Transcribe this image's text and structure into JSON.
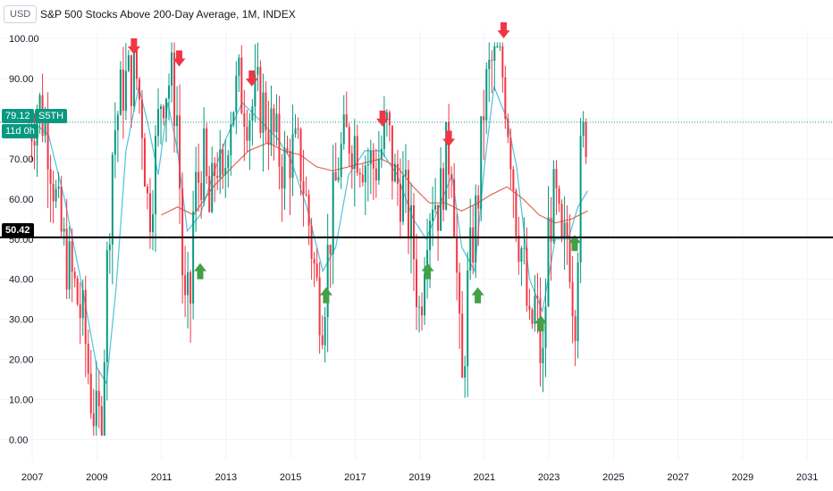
{
  "header": {
    "currency": "USD",
    "title": "S&P 500 Stocks Above 200-Day Average, 1M, INDEX"
  },
  "badges": {
    "last_price": "79.12",
    "symbol": "S5TH",
    "countdown": "11d 0h",
    "level": "50.42"
  },
  "colors": {
    "up": "#089981",
    "down": "#f23645",
    "ma_fast": "#4fc3d9",
    "ma_slow": "#e06a55",
    "hline": "#000000",
    "grid": "#f0f3fa",
    "price_line": "#089981"
  },
  "chart_data": {
    "type": "candlestick",
    "title": "S&P 500 Stocks Above 200-Day Average, 1M, INDEX",
    "xlabel": "",
    "ylabel": "",
    "x_ticks": [
      "2007",
      "2009",
      "2011",
      "2013",
      "2015",
      "2017",
      "2019",
      "2021",
      "2023",
      "2025",
      "2027",
      "2029",
      "2031"
    ],
    "y_ticks": [
      "0.00",
      "10.00",
      "20.00",
      "30.00",
      "40.00",
      "50.00",
      "60.00",
      "70.00",
      "80.00",
      "90.00",
      "100.00"
    ],
    "xlim": [
      2006.0,
      2031.8
    ],
    "ylim": [
      -5,
      102
    ],
    "horizontal_line": 50.42,
    "last_value": 79.12,
    "anchors": [
      [
        2006.9,
        77
      ],
      [
        2007.2,
        84
      ],
      [
        2007.5,
        75
      ],
      [
        2007.8,
        55
      ],
      [
        2008.0,
        47
      ],
      [
        2008.3,
        38
      ],
      [
        2008.6,
        28
      ],
      [
        2008.8,
        12
      ],
      [
        2009.0,
        3
      ],
      [
        2009.15,
        5
      ],
      [
        2009.3,
        40
      ],
      [
        2009.5,
        75
      ],
      [
        2009.8,
        88
      ],
      [
        2010.0,
        90
      ],
      [
        2010.2,
        92
      ],
      [
        2010.4,
        80
      ],
      [
        2010.6,
        55
      ],
      [
        2010.8,
        70
      ],
      [
        2011.0,
        87
      ],
      [
        2011.3,
        90
      ],
      [
        2011.5,
        80
      ],
      [
        2011.7,
        30
      ],
      [
        2011.9,
        35
      ],
      [
        2012.0,
        60
      ],
      [
        2012.3,
        70
      ],
      [
        2012.5,
        55
      ],
      [
        2012.7,
        72
      ],
      [
        2012.9,
        60
      ],
      [
        2013.1,
        82
      ],
      [
        2013.4,
        88
      ],
      [
        2013.7,
        82
      ],
      [
        2014.0,
        85
      ],
      [
        2014.3,
        80
      ],
      [
        2014.6,
        72
      ],
      [
        2014.8,
        68
      ],
      [
        2015.0,
        72
      ],
      [
        2015.3,
        70
      ],
      [
        2015.6,
        52
      ],
      [
        2015.8,
        38
      ],
      [
        2016.0,
        32
      ],
      [
        2016.2,
        50
      ],
      [
        2016.5,
        70
      ],
      [
        2016.8,
        76
      ],
      [
        2017.0,
        75
      ],
      [
        2017.3,
        70
      ],
      [
        2017.6,
        68
      ],
      [
        2017.8,
        72
      ],
      [
        2018.0,
        78
      ],
      [
        2018.2,
        65
      ],
      [
        2018.5,
        62
      ],
      [
        2018.8,
        48
      ],
      [
        2019.0,
        30
      ],
      [
        2019.2,
        55
      ],
      [
        2019.4,
        62
      ],
      [
        2019.6,
        58
      ],
      [
        2019.8,
        70
      ],
      [
        2020.0,
        72
      ],
      [
        2020.2,
        30
      ],
      [
        2020.3,
        10
      ],
      [
        2020.5,
        40
      ],
      [
        2020.8,
        60
      ],
      [
        2021.0,
        85
      ],
      [
        2021.2,
        93
      ],
      [
        2021.4,
        95
      ],
      [
        2021.6,
        90
      ],
      [
        2021.8,
        75
      ],
      [
        2022.0,
        55
      ],
      [
        2022.2,
        45
      ],
      [
        2022.4,
        25
      ],
      [
        2022.6,
        35
      ],
      [
        2022.8,
        15
      ],
      [
        2023.0,
        55
      ],
      [
        2023.2,
        60
      ],
      [
        2023.4,
        45
      ],
      [
        2023.6,
        52
      ],
      [
        2023.8,
        30
      ],
      [
        2024.0,
        72
      ],
      [
        2024.2,
        79
      ]
    ],
    "ma_fast": [
      [
        2006.9,
        80
      ],
      [
        2007.5,
        76
      ],
      [
        2008.0,
        60
      ],
      [
        2008.5,
        40
      ],
      [
        2009.0,
        18
      ],
      [
        2009.3,
        14
      ],
      [
        2009.6,
        38
      ],
      [
        2009.9,
        72
      ],
      [
        2010.3,
        88
      ],
      [
        2010.6,
        78
      ],
      [
        2010.9,
        66
      ],
      [
        2011.2,
        84
      ],
      [
        2011.5,
        72
      ],
      [
        2011.8,
        52
      ],
      [
        2012.2,
        56
      ],
      [
        2012.6,
        66
      ],
      [
        2013.0,
        75
      ],
      [
        2013.5,
        84
      ],
      [
        2014.0,
        80
      ],
      [
        2014.6,
        75
      ],
      [
        2015.0,
        70
      ],
      [
        2015.5,
        58
      ],
      [
        2016.0,
        42
      ],
      [
        2016.4,
        48
      ],
      [
        2016.8,
        66
      ],
      [
        2017.3,
        72
      ],
      [
        2017.8,
        72
      ],
      [
        2018.3,
        66
      ],
      [
        2018.8,
        55
      ],
      [
        2019.2,
        50
      ],
      [
        2019.6,
        58
      ],
      [
        2020.0,
        66
      ],
      [
        2020.3,
        48
      ],
      [
        2020.7,
        42
      ],
      [
        2021.0,
        68
      ],
      [
        2021.3,
        88
      ],
      [
        2021.7,
        80
      ],
      [
        2022.0,
        68
      ],
      [
        2022.4,
        40
      ],
      [
        2022.8,
        32
      ],
      [
        2023.2,
        50
      ],
      [
        2023.6,
        50
      ],
      [
        2023.9,
        58
      ],
      [
        2024.2,
        62
      ]
    ],
    "ma_slow": [
      [
        2011.0,
        56
      ],
      [
        2011.5,
        58
      ],
      [
        2012.0,
        56
      ],
      [
        2012.6,
        63
      ],
      [
        2013.2,
        68
      ],
      [
        2013.7,
        72
      ],
      [
        2014.3,
        74
      ],
      [
        2014.8,
        72
      ],
      [
        2015.3,
        71
      ],
      [
        2015.8,
        68
      ],
      [
        2016.3,
        67
      ],
      [
        2016.8,
        68
      ],
      [
        2017.3,
        69
      ],
      [
        2017.8,
        70
      ],
      [
        2018.3,
        68
      ],
      [
        2018.8,
        63
      ],
      [
        2019.3,
        59
      ],
      [
        2019.8,
        59
      ],
      [
        2020.3,
        57
      ],
      [
        2020.8,
        59
      ],
      [
        2021.2,
        61
      ],
      [
        2021.7,
        63
      ],
      [
        2022.2,
        60
      ],
      [
        2022.7,
        56
      ],
      [
        2023.2,
        54
      ],
      [
        2023.7,
        55
      ],
      [
        2024.2,
        57
      ]
    ],
    "down_arrows": [
      [
        2010.15,
        96
      ],
      [
        2011.55,
        93
      ],
      [
        2013.8,
        88
      ],
      [
        2017.85,
        78
      ],
      [
        2019.9,
        73
      ],
      [
        2021.6,
        100
      ]
    ],
    "up_arrows": [
      [
        2012.2,
        44
      ],
      [
        2016.1,
        38
      ],
      [
        2019.25,
        44
      ],
      [
        2020.8,
        38
      ],
      [
        2022.75,
        31
      ],
      [
        2023.8,
        51
      ]
    ]
  }
}
